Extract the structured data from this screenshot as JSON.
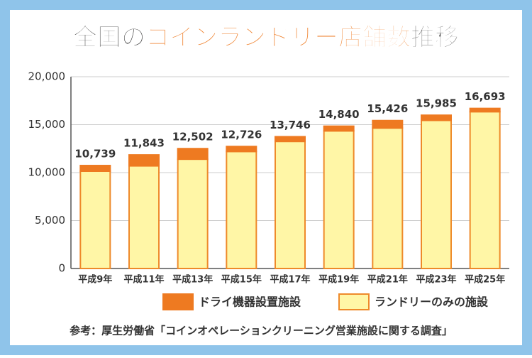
{
  "chart_data": {
    "type": "stacked-bar",
    "title_parts": [
      {
        "text": "全国の",
        "color": "#333333"
      },
      {
        "text": "コインランドリー店舗数",
        "color": "#ee7a21"
      },
      {
        "text": "推移",
        "color": "#333333"
      }
    ],
    "categories": [
      "平成9年",
      "平成11年",
      "平成13年",
      "平成15年",
      "平成17年",
      "平成19年",
      "平成21年",
      "平成23年",
      "平成25年"
    ],
    "series": [
      {
        "name": "ランドリーのみの施設",
        "color": "#fff6a6",
        "stroke": "#ee8a2a",
        "values": [
          10150,
          10700,
          11400,
          12200,
          13250,
          14350,
          14650,
          15450,
          16350
        ]
      },
      {
        "name": "ドライ機器設置施設",
        "color": "#ee7a21",
        "stroke": "#ee7a21",
        "values": [
          589,
          1143,
          1102,
          526,
          496,
          490,
          776,
          535,
          343
        ]
      }
    ],
    "totals": [
      10739,
      11843,
      12502,
      12726,
      13746,
      14840,
      15426,
      15985,
      16693
    ],
    "total_labels": [
      "10,739",
      "11,843",
      "12,502",
      "12,726",
      "13,746",
      "14,840",
      "15,426",
      "15,985",
      "16,693"
    ],
    "ylim": [
      0,
      20000
    ],
    "yticks": [
      0,
      {
        "value": 5000,
        "label": "5,000"
      },
      {
        "value": 10000,
        "label": "10,000"
      },
      {
        "value": 15000,
        "label": "15,000"
      },
      {
        "value": 20000,
        "label": "20,000"
      }
    ],
    "grid": true,
    "source": "参考：厚生労働省「コインオペレーションクリーニング営業施設に関する調査」"
  }
}
